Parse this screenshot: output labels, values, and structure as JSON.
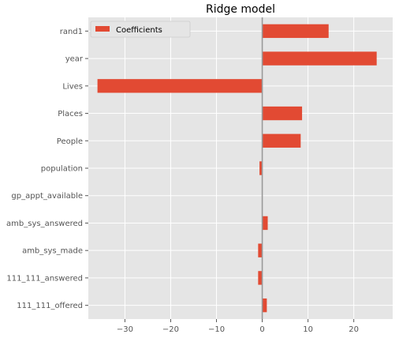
{
  "chart_data": {
    "type": "bar",
    "orientation": "horizontal",
    "title": "Ridge model",
    "xlabel": "",
    "ylabel": "",
    "categories": [
      "rand1",
      "year",
      "Lives",
      "Places",
      "People",
      "population",
      "gp_appt_available",
      "amb_sys_answered",
      "amb_sys_made",
      "111_111_answered",
      "111_111_offered"
    ],
    "series": [
      {
        "name": "Coefficients",
        "values": [
          14.5,
          25.0,
          -36.0,
          8.7,
          8.4,
          -0.6,
          0.0,
          1.2,
          -0.9,
          -0.9,
          1.0
        ]
      }
    ],
    "xlim": [
      -38,
      28.5
    ],
    "xticks": [
      -30,
      -20,
      -10,
      0,
      10,
      20
    ],
    "xtick_labels": [
      "−30",
      "−20",
      "−10",
      "0",
      "10",
      "20"
    ],
    "grid": true,
    "zero_line": true,
    "legend_position": "top-left",
    "colors": {
      "bar": "#E24A33",
      "plot_background": "#E5E5E5",
      "grid": "#FFFFFF",
      "zero_line": "#999999",
      "tick_text": "#555555"
    }
  }
}
